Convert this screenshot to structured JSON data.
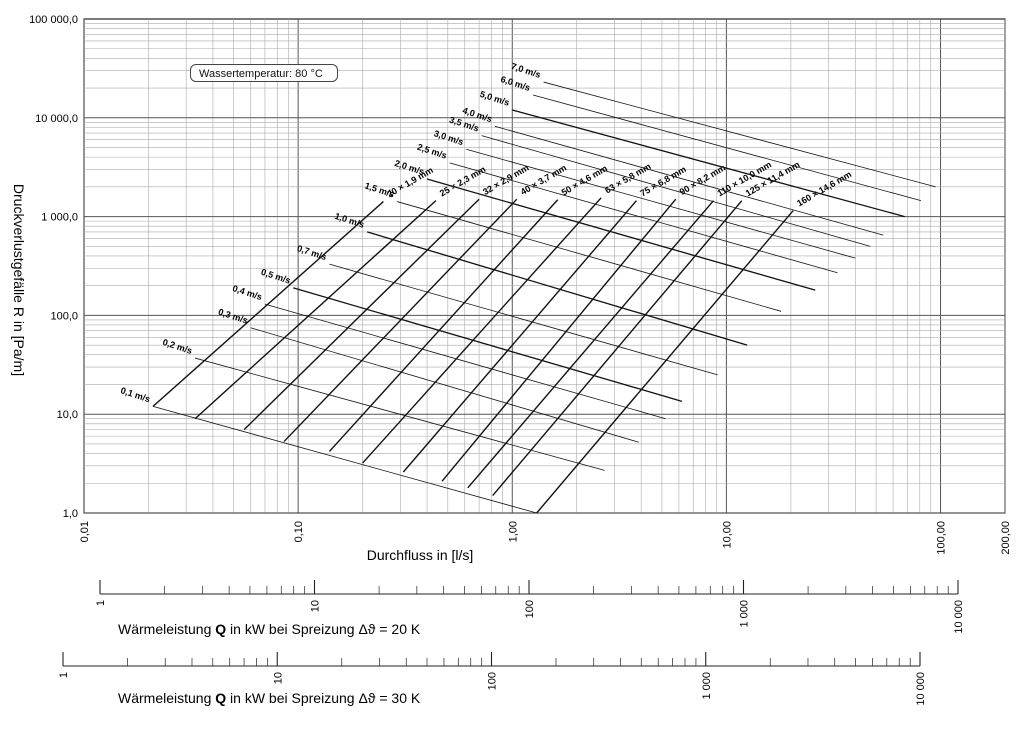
{
  "chart_data": {
    "type": "line",
    "title": "",
    "note": "Wassertemperatur:  80 °C",
    "xlabel": "Durchfluss  in  [l/s]",
    "ylabel": "Druckverlustgefälle  R  in  [Pa/m]",
    "x_scale": "log",
    "y_scale": "log",
    "xlim": [
      0.01,
      200
    ],
    "ylim": [
      1,
      100000
    ],
    "x_ticks": [
      0.01,
      0.1,
      1,
      10,
      100,
      200
    ],
    "x_tick_labels": [
      "0,01",
      "0,10",
      "1,00",
      "10,00",
      "100,00",
      "200,00"
    ],
    "y_ticks": [
      1,
      10,
      100,
      1000,
      10000,
      100000
    ],
    "y_tick_labels": [
      "1,0",
      "10,0",
      "100,0",
      "1 000,0",
      "10 000,0",
      "100 000,0"
    ],
    "grid": true,
    "series_pipes": [
      {
        "name": "20 × 1,9 mm",
        "x": [
          0.021,
          0.25
        ],
        "y": [
          12,
          1420
        ]
      },
      {
        "name": "25 × 2,3 mm",
        "x": [
          0.033,
          0.44
        ],
        "y": [
          9,
          1450
        ]
      },
      {
        "name": "32 × 2,9 mm",
        "x": [
          0.056,
          0.7
        ],
        "y": [
          7,
          1500
        ]
      },
      {
        "name": "40 × 3,7 mm",
        "x": [
          0.086,
          1.05
        ],
        "y": [
          5.3,
          1500
        ]
      },
      {
        "name": "50 × 4,6 mm",
        "x": [
          0.14,
          1.63
        ],
        "y": [
          4.2,
          1480
        ]
      },
      {
        "name": "63 × 5,8 mm",
        "x": [
          0.2,
          2.6
        ],
        "y": [
          3.2,
          1550
        ]
      },
      {
        "name": "75 × 6,8 mm",
        "x": [
          0.31,
          3.8
        ],
        "y": [
          2.6,
          1450
        ]
      },
      {
        "name": "90 × 8,2 mm",
        "x": [
          0.47,
          5.8
        ],
        "y": [
          2.1,
          1500
        ]
      },
      {
        "name": "110 × 10,0 mm",
        "x": [
          0.62,
          8.7
        ],
        "y": [
          1.8,
          1450
        ]
      },
      {
        "name": "125 × 11,4 mm",
        "x": [
          0.81,
          11.8
        ],
        "y": [
          1.5,
          1450
        ]
      },
      {
        "name": "160 × 14,6 mm",
        "x": [
          1.3,
          20.5
        ],
        "y": [
          1.0,
          1150
        ]
      }
    ],
    "series_velocity": [
      {
        "name": "0,1 m/s",
        "x": [
          0.021,
          1.3
        ],
        "y": [
          12,
          1.0
        ]
      },
      {
        "name": "0,2 m/s",
        "x": [
          0.033,
          2.7
        ],
        "y": [
          37,
          2.7
        ]
      },
      {
        "name": "0,3 m/s",
        "x": [
          0.06,
          3.9
        ],
        "y": [
          75,
          5.2
        ]
      },
      {
        "name": "0,4 m/s",
        "x": [
          0.07,
          5.2
        ],
        "y": [
          130,
          9.0
        ]
      },
      {
        "name": "0,5 m/s",
        "x": [
          0.095,
          6.2
        ],
        "y": [
          190,
          13.5
        ]
      },
      {
        "name": "0,7 m/s",
        "x": [
          0.14,
          9.1
        ],
        "y": [
          330,
          25
        ]
      },
      {
        "name": "1,0 m/s",
        "x": [
          0.21,
          12.5
        ],
        "y": [
          700,
          50
        ]
      },
      {
        "name": "1,5 m/s",
        "x": [
          0.29,
          18.0
        ],
        "y": [
          1420,
          110
        ]
      },
      {
        "name": "2,0 m/s",
        "x": [
          0.4,
          26.0
        ],
        "y": [
          2400,
          180
        ]
      },
      {
        "name": "2,5 m/s",
        "x": [
          0.51,
          33.0
        ],
        "y": [
          3500,
          270
        ]
      },
      {
        "name": "3,0 m/s",
        "x": [
          0.61,
          40.0
        ],
        "y": [
          4800,
          380
        ]
      },
      {
        "name": "3,5 m/s",
        "x": [
          0.72,
          47.0
        ],
        "y": [
          6600,
          500
        ]
      },
      {
        "name": "4,0 m/s",
        "x": [
          0.83,
          54.0
        ],
        "y": [
          8200,
          650
        ]
      },
      {
        "name": "5,0 m/s",
        "x": [
          1.0,
          68.0
        ],
        "y": [
          12000,
          1000
        ]
      },
      {
        "name": "6,0 m/s",
        "x": [
          1.25,
          81.0
        ],
        "y": [
          17000,
          1450
        ]
      },
      {
        "name": "7,0 m/s",
        "x": [
          1.4,
          95.0
        ],
        "y": [
          23000,
          2000
        ]
      }
    ],
    "secondary_axes": [
      {
        "label_prefix": "Wärmeleistung",
        "label_symbol": "Q",
        "label_suffix": "in kW  bei Spreizung  Δϑ  = 20 K",
        "range": [
          1,
          10000
        ],
        "tick_labels": [
          "1",
          "10",
          "100",
          "1 000",
          "10 000"
        ]
      },
      {
        "label_prefix": "Wärmeleistung",
        "label_symbol": "Q",
        "label_suffix": "in kW  bei Spreizung  Δϑ  = 30 K",
        "range": [
          1,
          10000
        ],
        "tick_labels": [
          "1",
          "10",
          "100",
          "1 000",
          "10 000"
        ]
      }
    ]
  }
}
